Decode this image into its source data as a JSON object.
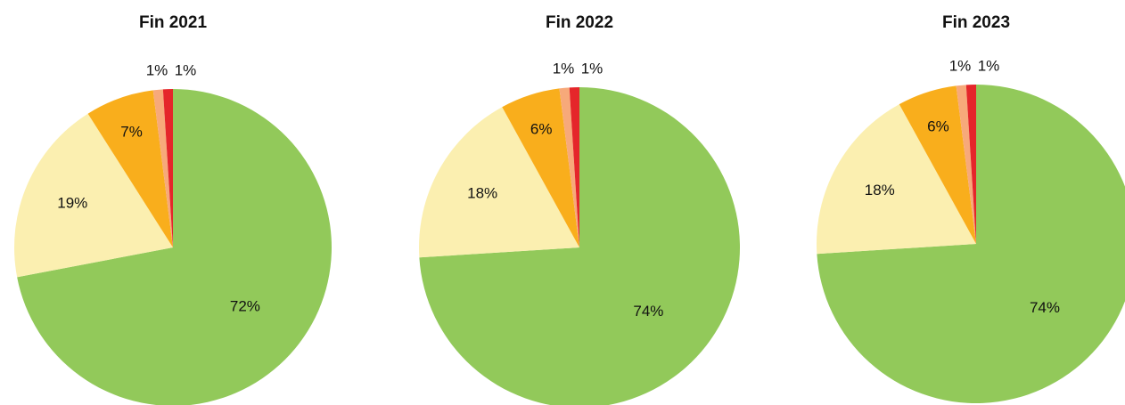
{
  "chart_data": [
    {
      "type": "pie",
      "title": "Fin 2021",
      "values": [
        72,
        19,
        7,
        1,
        1
      ],
      "value_labels": [
        "72%",
        "19%",
        "7%",
        "1%",
        "1%"
      ],
      "colors": [
        "#92c95a",
        "#fbefb0",
        "#f9ae1c",
        "#f7a97a",
        "#e5262a"
      ]
    },
    {
      "type": "pie",
      "title": "Fin 2022",
      "values": [
        74,
        18,
        6,
        1,
        1
      ],
      "value_labels": [
        "74%",
        "18%",
        "6%",
        "1%",
        "1%"
      ],
      "colors": [
        "#92c95a",
        "#fbefb0",
        "#f9ae1c",
        "#f7a97a",
        "#e5262a"
      ]
    },
    {
      "type": "pie",
      "title": "Fin 2023",
      "values": [
        74,
        18,
        6,
        1,
        1
      ],
      "value_labels": [
        "74%",
        "18%",
        "6%",
        "1%",
        "1%"
      ],
      "colors": [
        "#92c95a",
        "#fbefb0",
        "#f9ae1c",
        "#f7a97a",
        "#e5262a"
      ]
    }
  ]
}
